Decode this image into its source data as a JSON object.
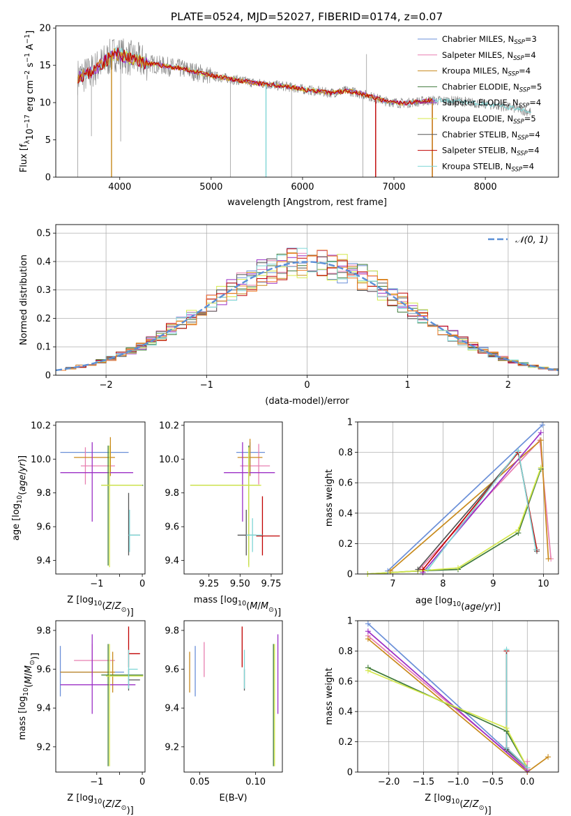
{
  "figure": {
    "title": "PLATE=0524, MJD=52027, FIBERID=0174, z=0.07",
    "colors": {
      "Chabrier MILES": "#6a8fd8",
      "Salpeter MILES": "#e87fb0",
      "Kroupa MILES": "#c88a1c",
      "Chabrier ELODIE": "#3f7a3a",
      "Salpeter ELODIE": "#9b2fc6",
      "Kroupa ELODIE": "#d4e84a",
      "Chabrier STELIB": "#555555",
      "Salpeter STELIB": "#c00000",
      "Kroupa STELIB": "#7fd6d6",
      "orange": "#f07820",
      "gauss": "#5b8fd6"
    }
  },
  "chart_data": [
    {
      "id": "spectrum",
      "type": "line",
      "xlabel": "wavelength [Angstrom, rest frame]",
      "ylabel_parts": [
        "Flux [f",
        "λ",
        "10",
        "−17",
        " erg cm",
        "−2",
        " s",
        "−1",
        " A",
        "−1",
        "]"
      ],
      "xlim": [
        3300,
        8800
      ],
      "ylim": [
        0,
        20.3
      ],
      "xticks": [
        4000,
        5000,
        6000,
        7000,
        8000
      ],
      "yticks": [
        0,
        5,
        10,
        15,
        20
      ],
      "grid": false,
      "legend_position": "upper-right",
      "legend": [
        {
          "name": "Chabrier MILES",
          "nssp": "3"
        },
        {
          "name": "Salpeter MILES",
          "nssp": "4"
        },
        {
          "name": "Kroupa MILES",
          "nssp": "4"
        },
        {
          "name": "Chabrier ELODIE",
          "nssp": "5"
        },
        {
          "name": "Salpeter ELODIE",
          "nssp": "4"
        },
        {
          "name": "Kroupa ELODIE",
          "nssp": "5"
        },
        {
          "name": "Chabrier STELIB",
          "nssp": "4"
        },
        {
          "name": "Salpeter STELIB",
          "nssp": "4"
        },
        {
          "name": "Kroupa STELIB",
          "nssp": "4"
        }
      ],
      "continuum_knots": [
        [
          3540,
          13.5
        ],
        [
          3650,
          13.8
        ],
        [
          3800,
          15.2
        ],
        [
          3950,
          16.6
        ],
        [
          4100,
          16.0
        ],
        [
          4300,
          15.3
        ],
        [
          4500,
          14.9
        ],
        [
          4700,
          14.5
        ],
        [
          5000,
          13.6
        ],
        [
          5200,
          13.2
        ],
        [
          5500,
          12.6
        ],
        [
          5800,
          12.2
        ],
        [
          6000,
          11.8
        ],
        [
          6300,
          11.3
        ],
        [
          6500,
          11.6
        ],
        [
          6700,
          11.0
        ],
        [
          6900,
          10.2
        ],
        [
          7100,
          9.9
        ],
        [
          7400,
          10.3
        ],
        [
          7700,
          10.2
        ],
        [
          8000,
          9.8
        ],
        [
          8300,
          9.3
        ],
        [
          8500,
          8.7
        ]
      ],
      "data_spikes": [
        [
          3540,
          0
        ],
        [
          3690,
          5.5
        ],
        [
          3910,
          0
        ],
        [
          5210,
          0
        ],
        [
          5600,
          0
        ],
        [
          5880,
          0
        ],
        [
          6660,
          0
        ],
        [
          6800,
          0
        ],
        [
          6700,
          16.5
        ],
        [
          4010,
          4.8
        ]
      ]
    },
    {
      "id": "residuals",
      "type": "histogram",
      "xlabel": "(data-model)/error",
      "ylabel": "Normed distribution",
      "xlim": [
        -2.5,
        2.5
      ],
      "ylim": [
        0,
        0.53
      ],
      "xticks": [
        -2,
        -1,
        0,
        1,
        2
      ],
      "yticks": [
        0.0,
        0.1,
        0.2,
        0.3,
        0.4,
        0.5
      ],
      "grid": true,
      "legend_position": "upper-right",
      "legend_label": "𝒩(0, 1)",
      "bin_width": 0.1,
      "bins_left_start": -2.5
    },
    {
      "id": "age-vs-Z",
      "type": "errorbar",
      "xlabel": "Z [log10(Z/Z⊙)]",
      "ylabel": "age  [log10(age/yr)]",
      "xlim": [
        -1.9,
        0.06
      ],
      "ylim": [
        9.32,
        10.22
      ],
      "xticks": [
        -1,
        -0.5,
        0
      ],
      "xtick_labels": [
        "−1",
        "",
        "0"
      ],
      "yticks": [
        9.4,
        9.6,
        9.8,
        10.0,
        10.2
      ],
      "ytick_labels": [
        "9.4",
        "9.6",
        "9.8",
        "10.0",
        "10.2"
      ],
      "points": [
        {
          "series": "Chabrier MILES",
          "x": -1.8,
          "xerr": [
            0,
            1.0
          ],
          "y": 10.04,
          "yerr": [
            0.18,
            0.07
          ],
          "xl": -1.8,
          "xh": -0.3
        },
        {
          "series": "Salpeter MILES",
          "x": -1.25,
          "xl": -1.35,
          "xh": -0.6,
          "y": 9.96,
          "yl": 9.85,
          "yh": 10.07
        },
        {
          "series": "Kroupa MILES",
          "x": -0.7,
          "xl": -1.5,
          "xh": -0.6,
          "y": 10.01,
          "yl": 9.9,
          "yh": 10.13
        },
        {
          "series": "Salpeter ELODIE",
          "x": -1.1,
          "xl": -1.8,
          "xh": -0.2,
          "y": 9.92,
          "yl": 9.63,
          "yh": 10.1
        },
        {
          "series": "Chabrier ELODIE",
          "x": -0.75,
          "xl": -0.9,
          "xh": 0.02,
          "y": 9.845,
          "yl": 9.37,
          "yh": 10.08
        },
        {
          "series": "Kroupa ELODIE",
          "x": -0.72,
          "xl": -0.9,
          "xh": 0.0,
          "y": 9.845,
          "yl": 9.36,
          "yh": 10.08
        },
        {
          "series": "Chabrier STELIB",
          "x": -0.3,
          "xl": -0.3,
          "xh": -0.05,
          "y": 9.55,
          "yl": 9.43,
          "yh": 9.8
        },
        {
          "series": "Kroupa STELIB",
          "x": -0.28,
          "xl": -0.3,
          "xh": -0.05,
          "y": 9.55,
          "yl": 9.45,
          "yh": 9.7
        }
      ]
    },
    {
      "id": "age-vs-mass",
      "type": "errorbar",
      "xlabel": "mass [log10(M/M⊙)]",
      "ylabel": "",
      "xlim": [
        9.05,
        9.84
      ],
      "ylim": [
        9.32,
        10.22
      ],
      "xticks": [
        9.25,
        9.5,
        9.75
      ],
      "xtick_labels": [
        "9.25",
        "9.50",
        "9.75"
      ],
      "yticks": [
        9.4,
        9.6,
        9.8,
        10.0,
        10.2
      ],
      "ytick_labels": [
        "9.4",
        "9.6",
        "9.8",
        "10.0",
        "10.2"
      ],
      "points": [
        {
          "series": "Chabrier MILES",
          "x": 9.58,
          "xl": 9.47,
          "xh": 9.7,
          "y": 10.04,
          "yl": 9.9,
          "yh": 10.1
        },
        {
          "series": "Salpeter MILES",
          "x": 9.65,
          "xl": 9.5,
          "xh": 9.74,
          "y": 9.96,
          "yl": 9.85,
          "yh": 10.09
        },
        {
          "series": "Kroupa MILES",
          "x": 9.58,
          "xl": 9.48,
          "xh": 9.68,
          "y": 10.01,
          "yl": 9.9,
          "yh": 10.12
        },
        {
          "series": "Salpeter ELODIE",
          "x": 9.52,
          "xl": 9.37,
          "xh": 9.78,
          "y": 9.92,
          "yl": 9.63,
          "yh": 10.1
        },
        {
          "series": "Chabrier ELODIE",
          "x": 9.57,
          "xl": 9.1,
          "xh": 9.66,
          "y": 9.845,
          "yl": 9.37,
          "yh": 10.08
        },
        {
          "series": "Kroupa ELODIE",
          "x": 9.57,
          "xl": 9.1,
          "xh": 9.67,
          "y": 9.845,
          "yl": 9.36,
          "yh": 10.07
        },
        {
          "series": "Chabrier STELIB",
          "x": 9.55,
          "xl": 9.48,
          "xh": 9.63,
          "y": 9.55,
          "yl": 9.43,
          "yh": 9.7
        },
        {
          "series": "Salpeter STELIB",
          "x": 9.68,
          "xl": 9.63,
          "xh": 9.82,
          "y": 9.545,
          "yl": 9.43,
          "yh": 9.78
        },
        {
          "series": "Kroupa STELIB",
          "x": 9.6,
          "xl": 9.55,
          "xh": 9.68,
          "y": 9.55,
          "yl": 9.45,
          "yh": 9.65
        }
      ]
    },
    {
      "id": "weight-vs-age",
      "type": "line",
      "xlabel": "age  [log10(age/yr)]",
      "ylabel": "mass weight",
      "xlim": [
        6.3,
        10.3
      ],
      "ylim": [
        0,
        1.0
      ],
      "xticks": [
        7,
        8,
        9,
        10
      ],
      "yticks": [
        0.0,
        0.2,
        0.4,
        0.6,
        0.8,
        1.0
      ],
      "grid": true,
      "series": [
        {
          "name": "Chabrier MILES",
          "x": [
            6.9,
            9.98
          ],
          "y": [
            0.02,
            0.98
          ]
        },
        {
          "name": "Salpeter MILES",
          "x": [
            7.5,
            9.93,
            10.15
          ],
          "y": [
            0.02,
            0.88,
            0.1
          ]
        },
        {
          "name": "Kroupa MILES",
          "x": [
            6.95,
            9.95,
            10.1
          ],
          "y": [
            0.02,
            0.88,
            0.1
          ]
        },
        {
          "name": "Chabrier ELODIE",
          "x": [
            6.5,
            7.5,
            8.3,
            9.5,
            9.95
          ],
          "y": [
            0.0,
            0.02,
            0.03,
            0.27,
            0.69
          ]
        },
        {
          "name": "Salpeter ELODIE",
          "x": [
            7.6,
            9.95
          ],
          "y": [
            0.01,
            0.93
          ]
        },
        {
          "name": "Kroupa ELODIE",
          "x": [
            6.5,
            7.5,
            8.3,
            9.5,
            9.95
          ],
          "y": [
            0.0,
            0.02,
            0.04,
            0.29,
            0.7
          ]
        },
        {
          "name": "Chabrier STELIB",
          "x": [
            7.5,
            9.5,
            9.87
          ],
          "y": [
            0.03,
            0.8,
            0.15
          ]
        },
        {
          "name": "Salpeter STELIB",
          "x": [
            7.6,
            9.5,
            9.87
          ],
          "y": [
            0.03,
            0.8,
            0.16
          ]
        },
        {
          "name": "Kroupa STELIB",
          "x": [
            7.7,
            9.5,
            9.85
          ],
          "y": [
            0.03,
            0.81,
            0.16
          ]
        }
      ]
    },
    {
      "id": "mass-vs-Z",
      "type": "errorbar",
      "xlabel": "Z [log10(Z/Z⊙)]",
      "ylabel": "mass [log10(M/M⊙)]",
      "xlim": [
        -1.9,
        0.06
      ],
      "ylim": [
        9.07,
        9.85
      ],
      "xticks": [
        -1,
        -0.5,
        0
      ],
      "xtick_labels": [
        "−1",
        "",
        "0"
      ],
      "yticks": [
        9.2,
        9.4,
        9.6,
        9.8
      ],
      "ytick_labels": [
        "9.2",
        "9.4",
        "9.6",
        "9.8"
      ],
      "points": [
        {
          "series": "Chabrier MILES",
          "x": -1.8,
          "xl": -1.8,
          "xh": -0.4,
          "y": 9.585,
          "yl": 9.46,
          "yh": 9.72
        },
        {
          "series": "Salpeter MILES",
          "x": -1.1,
          "xl": -1.5,
          "xh": -0.6,
          "y": 9.645,
          "yl": 9.56,
          "yh": 9.73
        },
        {
          "series": "Kroupa MILES",
          "x": -0.65,
          "xl": -1.8,
          "xh": -0.6,
          "y": 9.585,
          "yl": 9.48,
          "yh": 9.69
        },
        {
          "series": "Salpeter ELODIE",
          "x": -1.1,
          "xl": -1.8,
          "xh": -0.15,
          "y": 9.52,
          "yl": 9.37,
          "yh": 9.78
        },
        {
          "series": "Chabrier ELODIE",
          "x": -0.75,
          "xl": -0.9,
          "xh": 0.02,
          "y": 9.57,
          "yl": 9.1,
          "yh": 9.73
        },
        {
          "series": "Kroupa ELODIE",
          "x": -0.72,
          "xl": -0.8,
          "xh": 0.02,
          "y": 9.565,
          "yl": 9.1,
          "yh": 9.73
        },
        {
          "series": "Chabrier STELIB",
          "x": -0.3,
          "xl": -0.3,
          "xh": -0.05,
          "y": 9.545,
          "yl": 9.49,
          "yh": 9.6
        },
        {
          "series": "Salpeter STELIB",
          "x": -0.3,
          "xl": -0.3,
          "xh": -0.05,
          "y": 9.68,
          "yl": 9.61,
          "yh": 9.82
        },
        {
          "series": "Kroupa STELIB",
          "x": -0.3,
          "xl": -0.3,
          "xh": -0.1,
          "y": 9.6,
          "yl": 9.5,
          "yh": 9.7
        }
      ]
    },
    {
      "id": "mass-vs-ebv",
      "type": "errorbar",
      "xlabel": "E(B-V)",
      "ylabel": "",
      "xlim": [
        0.036,
        0.124
      ],
      "ylim": [
        9.07,
        9.85
      ],
      "xticks": [
        0.05,
        0.1
      ],
      "xtick_labels": [
        "0.05",
        "0.10"
      ],
      "yticks": [
        9.2,
        9.4,
        9.6,
        9.8
      ],
      "ytick_labels": [
        "9.2",
        "9.4",
        "9.6",
        "9.8"
      ],
      "points": [
        {
          "series": "Kroupa MILES",
          "x": 0.041,
          "y": 9.585,
          "yl": 9.48,
          "yh": 9.69
        },
        {
          "series": "Chabrier MILES",
          "x": 0.046,
          "y": 9.585,
          "yl": 9.46,
          "yh": 9.72
        },
        {
          "series": "Salpeter MILES",
          "x": 0.054,
          "y": 9.645,
          "yl": 9.56,
          "yh": 9.74
        },
        {
          "series": "Salpeter STELIB",
          "x": 0.088,
          "y": 9.71,
          "yl": 9.61,
          "yh": 9.82
        },
        {
          "series": "Chabrier STELIB",
          "x": 0.09,
          "y": 9.545,
          "yl": 9.49,
          "yh": 9.6
        },
        {
          "series": "Kroupa STELIB",
          "x": 0.09,
          "y": 9.6,
          "yl": 9.5,
          "yh": 9.7
        },
        {
          "series": "Chabrier ELODIE",
          "x": 0.116,
          "y": 9.565,
          "yl": 9.1,
          "yh": 9.73
        },
        {
          "series": "Kroupa ELODIE",
          "x": 0.117,
          "y": 9.565,
          "yl": 9.1,
          "yh": 9.73
        },
        {
          "series": "Salpeter ELODIE",
          "x": 0.12,
          "y": 9.52,
          "yl": 9.37,
          "yh": 9.78
        }
      ]
    },
    {
      "id": "weight-vs-Z",
      "type": "line",
      "xlabel": "Z [log10(Z/Z⊙)]",
      "ylabel": "mass weight",
      "xlim": [
        -2.45,
        0.45
      ],
      "ylim": [
        0,
        1.0
      ],
      "xticks": [
        -2.0,
        -1.5,
        -1.0,
        -0.5,
        0.0
      ],
      "xtick_labels": [
        "−2.0",
        "−1.5",
        "−1.0",
        "−0.5",
        "0.0"
      ],
      "yticks": [
        0.0,
        0.2,
        0.4,
        0.6,
        0.8,
        1.0
      ],
      "grid": true,
      "series": [
        {
          "name": "Chabrier MILES",
          "x": [
            -2.3,
            0.0
          ],
          "y": [
            0.98,
            0.02
          ]
        },
        {
          "name": "Salpeter MILES",
          "x": [
            -2.3,
            0.0,
            0.0
          ],
          "y": [
            0.9,
            0.02,
            0.07
          ]
        },
        {
          "name": "Kroupa MILES",
          "x": [
            -2.3,
            0.0,
            0.3
          ],
          "y": [
            0.88,
            0.0,
            0.1
          ]
        },
        {
          "name": "Chabrier ELODIE",
          "x": [
            -2.3,
            -0.3,
            0.0
          ],
          "y": [
            0.69,
            0.27,
            0.03
          ]
        },
        {
          "name": "Salpeter ELODIE",
          "x": [
            -2.3,
            0.0
          ],
          "y": [
            0.93,
            0.01
          ]
        },
        {
          "name": "Kroupa ELODIE",
          "x": [
            -2.3,
            -0.3,
            0.0
          ],
          "y": [
            0.67,
            0.29,
            0.03
          ]
        },
        {
          "name": "Chabrier STELIB",
          "x": [
            -0.3,
            -0.3,
            0.0
          ],
          "y": [
            0.8,
            0.15,
            0.03
          ]
        },
        {
          "name": "Salpeter STELIB",
          "x": [
            -0.3,
            -0.3,
            0.0
          ],
          "y": [
            0.8,
            0.16,
            0.03
          ]
        },
        {
          "name": "Kroupa STELIB",
          "x": [
            -0.3,
            -0.3,
            0.0
          ],
          "y": [
            0.81,
            0.16,
            0.03
          ]
        }
      ]
    }
  ]
}
